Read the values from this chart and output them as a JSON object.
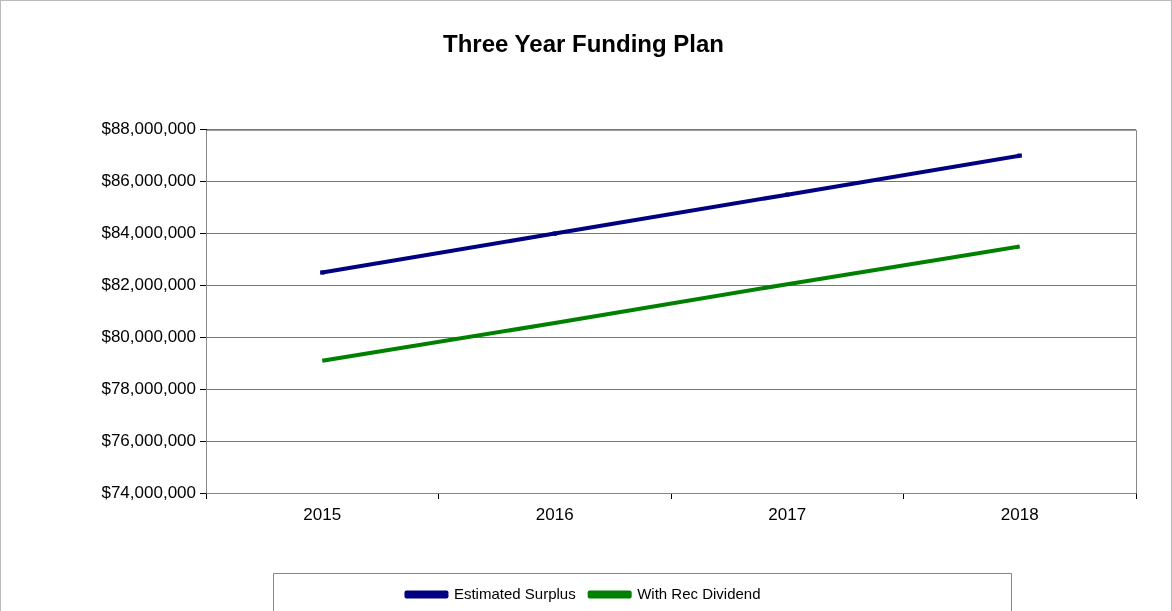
{
  "chart_data": {
    "type": "line",
    "title": "Three Year Funding Plan",
    "categories": [
      "2015",
      "2016",
      "2017",
      "2018"
    ],
    "series": [
      {
        "name": "Estimated Surplus",
        "color": "#000080",
        "values": [
          82500000,
          84000000,
          85500000,
          87000000
        ],
        "marker": "square"
      },
      {
        "name": "With Rec Dividend",
        "color": "#008000",
        "values": [
          79100000,
          80550000,
          82050000,
          83500000
        ],
        "marker": "none"
      }
    ],
    "ylim": [
      74000000,
      88000000
    ],
    "yticks": [
      {
        "value": 74000000,
        "label": "$74,000,000"
      },
      {
        "value": 76000000,
        "label": "$76,000,000"
      },
      {
        "value": 78000000,
        "label": "$78,000,000"
      },
      {
        "value": 80000000,
        "label": "$80,000,000"
      },
      {
        "value": 82000000,
        "label": "$82,000,000"
      },
      {
        "value": 84000000,
        "label": "$84,000,000"
      },
      {
        "value": 86000000,
        "label": "$86,000,000"
      },
      {
        "value": 88000000,
        "label": "$88,000,000"
      }
    ],
    "grid": "y",
    "legend": "bottom"
  }
}
